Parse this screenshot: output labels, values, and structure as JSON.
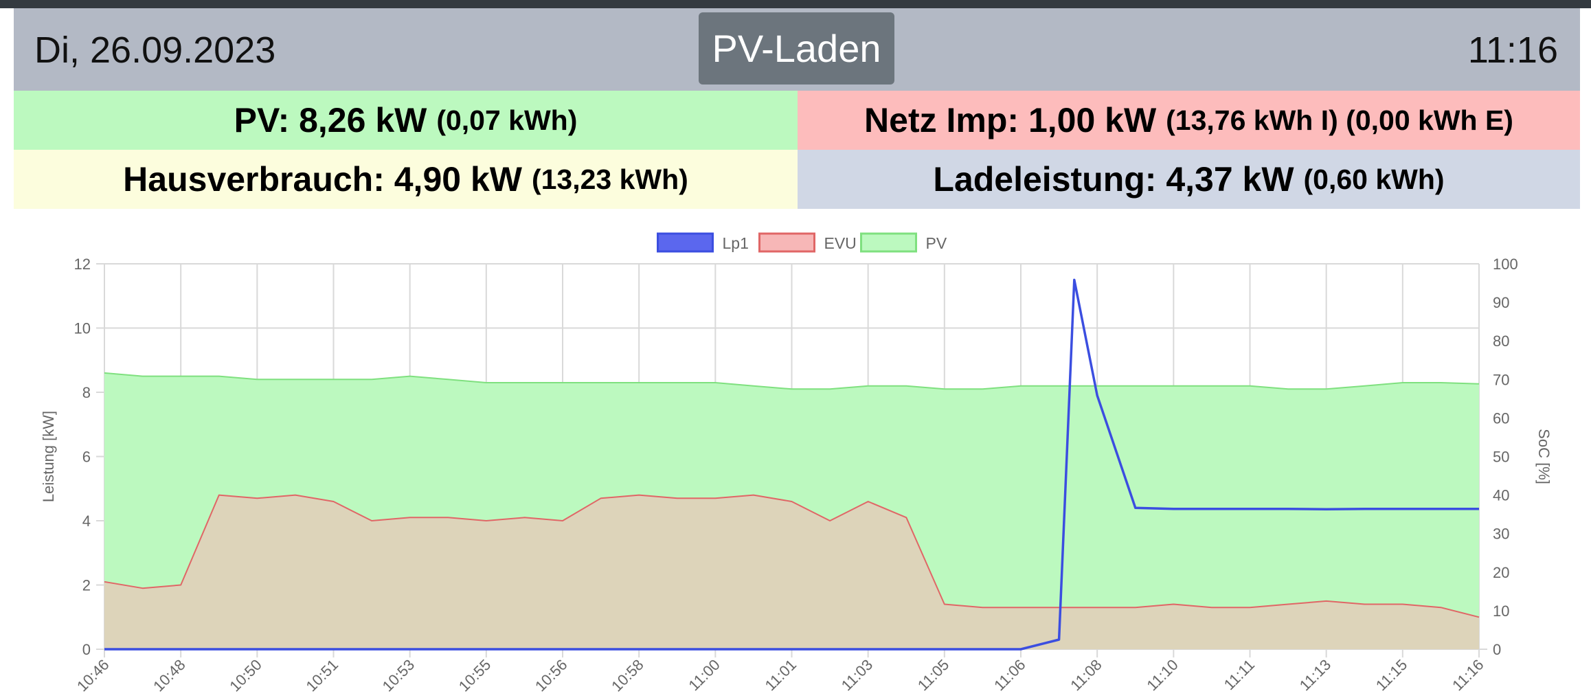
{
  "header": {
    "date": "Di, 26.09.2023",
    "mode_label": "PV-Laden",
    "time": "11:16"
  },
  "tiles": {
    "pv": {
      "label": "PV: 8,26 kW",
      "sub": "(0,07 kWh)",
      "color": "#bcf9bf"
    },
    "netz": {
      "label": "Netz Imp: 1,00 kW",
      "sub": "(13,76 kWh I) (0,00 kWh E)",
      "color": "#fdbcbc"
    },
    "haus": {
      "label": "Hausverbrauch: 4,90 kW",
      "sub": "(13,23 kWh)",
      "color": "#fcfddd"
    },
    "lade": {
      "label": "Ladeleistung: 4,37 kW",
      "sub": "(0,60 kWh)",
      "color": "#d0d7e5"
    }
  },
  "chart_data": {
    "type": "area",
    "xlabel": "",
    "ylabel": "Leistung [kW]",
    "y2label": "SoC [%]",
    "ylim": [
      0,
      12
    ],
    "y2lim": [
      0,
      100
    ],
    "yticks": [
      "0",
      "2",
      "4",
      "6",
      "8",
      "10",
      "12"
    ],
    "y2ticks": [
      "0",
      "10",
      "20",
      "30",
      "40",
      "50",
      "60",
      "70",
      "80",
      "90",
      "100"
    ],
    "categories": [
      "10:46",
      "10:48",
      "10:50",
      "10:51",
      "10:53",
      "10:55",
      "10:56",
      "10:58",
      "11:00",
      "11:01",
      "11:03",
      "11:05",
      "11:06",
      "11:08",
      "11:10",
      "11:11",
      "11:13",
      "11:15",
      "11:16"
    ],
    "x": [
      0,
      0.5,
      1,
      1.5,
      2,
      2.5,
      3,
      3.5,
      4,
      4.5,
      5,
      5.5,
      6,
      6.5,
      7,
      7.5,
      8,
      8.5,
      9,
      9.5,
      10,
      10.5,
      11,
      11.5,
      12,
      12.5,
      12.7,
      13,
      13.5,
      14,
      14.5,
      15,
      15.5,
      16,
      16.5,
      17,
      17.5,
      18
    ],
    "legend_position": "top",
    "grid": true,
    "series": [
      {
        "name": "Lp1",
        "color": "#3b4ee0",
        "values": [
          0,
          0,
          0,
          0,
          0,
          0,
          0,
          0,
          0,
          0,
          0,
          0,
          0,
          0,
          0,
          0,
          0,
          0,
          0,
          0,
          0,
          0,
          0,
          0,
          0,
          0.3,
          11.5,
          7.9,
          4.4,
          4.37,
          4.37,
          4.37,
          4.37,
          4.36,
          4.37,
          4.37,
          4.37,
          4.37
        ]
      },
      {
        "name": "EVU",
        "color": "#e06666",
        "fill": "#f7b7b7",
        "values": [
          2.1,
          1.9,
          2.0,
          4.8,
          4.7,
          4.8,
          4.6,
          4.0,
          4.1,
          4.1,
          4.0,
          4.1,
          4.0,
          4.7,
          4.8,
          4.7,
          4.7,
          4.8,
          4.6,
          4.0,
          4.6,
          4.1,
          1.4,
          1.3,
          1.3,
          1.3,
          1.3,
          1.3,
          1.3,
          1.4,
          1.3,
          1.3,
          1.4,
          1.5,
          1.4,
          1.4,
          1.3,
          1.0
        ]
      },
      {
        "name": "PV",
        "color": "#7fe07f",
        "fill": "#bcf9bf",
        "values": [
          8.6,
          8.5,
          8.5,
          8.5,
          8.4,
          8.4,
          8.4,
          8.4,
          8.5,
          8.4,
          8.3,
          8.3,
          8.3,
          8.3,
          8.3,
          8.3,
          8.3,
          8.2,
          8.1,
          8.1,
          8.2,
          8.2,
          8.1,
          8.1,
          8.2,
          8.2,
          8.2,
          8.2,
          8.2,
          8.2,
          8.2,
          8.2,
          8.1,
          8.1,
          8.2,
          8.3,
          8.3,
          8.26
        ]
      }
    ]
  }
}
